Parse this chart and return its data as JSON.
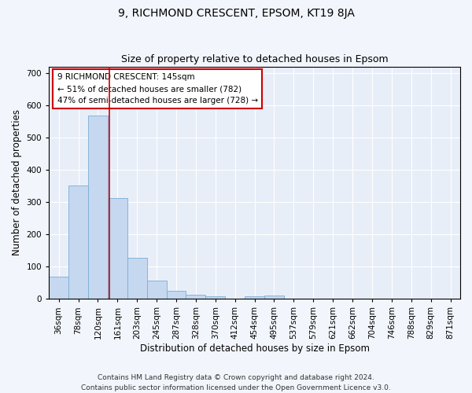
{
  "title": "9, RICHMOND CRESCENT, EPSOM, KT19 8JA",
  "subtitle": "Size of property relative to detached houses in Epsom",
  "xlabel": "Distribution of detached houses by size in Epsom",
  "ylabel": "Number of detached properties",
  "bar_color": "#c5d8f0",
  "bar_edge_color": "#7aadd4",
  "vline_color": "#cc0000",
  "vline_x_index": 2,
  "categories": [
    "36sqm",
    "78sqm",
    "120sqm",
    "161sqm",
    "203sqm",
    "245sqm",
    "287sqm",
    "328sqm",
    "370sqm",
    "412sqm",
    "454sqm",
    "495sqm",
    "537sqm",
    "579sqm",
    "621sqm",
    "662sqm",
    "704sqm",
    "746sqm",
    "788sqm",
    "829sqm",
    "871sqm"
  ],
  "values": [
    68,
    352,
    568,
    312,
    128,
    57,
    24,
    14,
    7,
    0,
    8,
    10,
    0,
    0,
    0,
    0,
    0,
    0,
    0,
    0,
    0
  ],
  "ylim": [
    0,
    720
  ],
  "yticks": [
    0,
    100,
    200,
    300,
    400,
    500,
    600,
    700
  ],
  "annotation_line1": "9 RICHMOND CRESCENT: 145sqm",
  "annotation_line2": "← 51% of detached houses are smaller (782)",
  "annotation_line3": "47% of semi-detached houses are larger (728) →",
  "footer_text": "Contains HM Land Registry data © Crown copyright and database right 2024.\nContains public sector information licensed under the Open Government Licence v3.0.",
  "background_color": "#f2f5fb",
  "plot_bg_color": "#e8eef8",
  "grid_color": "#ffffff",
  "title_fontsize": 10,
  "subtitle_fontsize": 9,
  "axis_label_fontsize": 8.5,
  "tick_fontsize": 7.5,
  "annotation_fontsize": 7.5,
  "footer_fontsize": 6.5
}
